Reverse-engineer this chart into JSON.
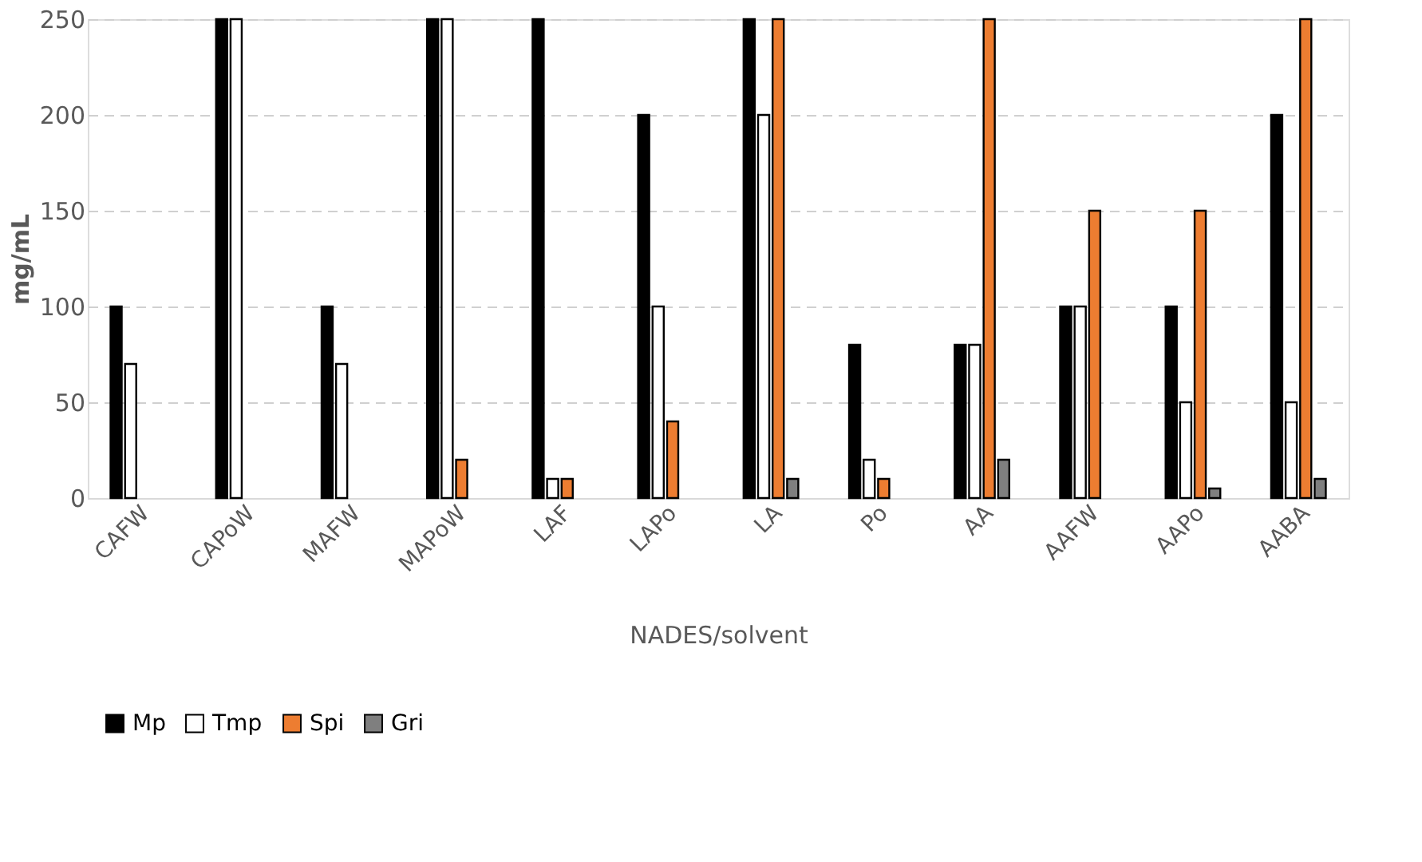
{
  "chart_data": {
    "type": "bar",
    "xlabel": "NADES/solvent",
    "ylabel": "mg/mL",
    "categories": [
      "CAFW",
      "CAPoW",
      "MAFW",
      "MAPoW",
      "LAF",
      "LAPo",
      "LA",
      "Po",
      "AA",
      "AAFW",
      "AAPo",
      "AABA"
    ],
    "series": [
      {
        "name": "Mp",
        "color": "#000000",
        "values": [
          100,
          250,
          100,
          250,
          250,
          200,
          250,
          80,
          80,
          100,
          100,
          200
        ]
      },
      {
        "name": "Tmp",
        "color": "#ffffff",
        "values": [
          70,
          250,
          70,
          250,
          10,
          100,
          200,
          20,
          80,
          100,
          50,
          50
        ]
      },
      {
        "name": "Spi",
        "color": "#ed7d31",
        "values": [
          null,
          null,
          null,
          20,
          10,
          40,
          250,
          10,
          250,
          150,
          150,
          250
        ]
      },
      {
        "name": "Gri",
        "color": "#7f7f7f",
        "values": [
          null,
          null,
          null,
          null,
          null,
          null,
          10,
          null,
          20,
          null,
          5,
          10
        ]
      }
    ],
    "ylim": [
      0,
      250
    ],
    "yticks": [
      0,
      50,
      100,
      150,
      200,
      250
    ],
    "grid": "y",
    "legend": "bottom"
  }
}
